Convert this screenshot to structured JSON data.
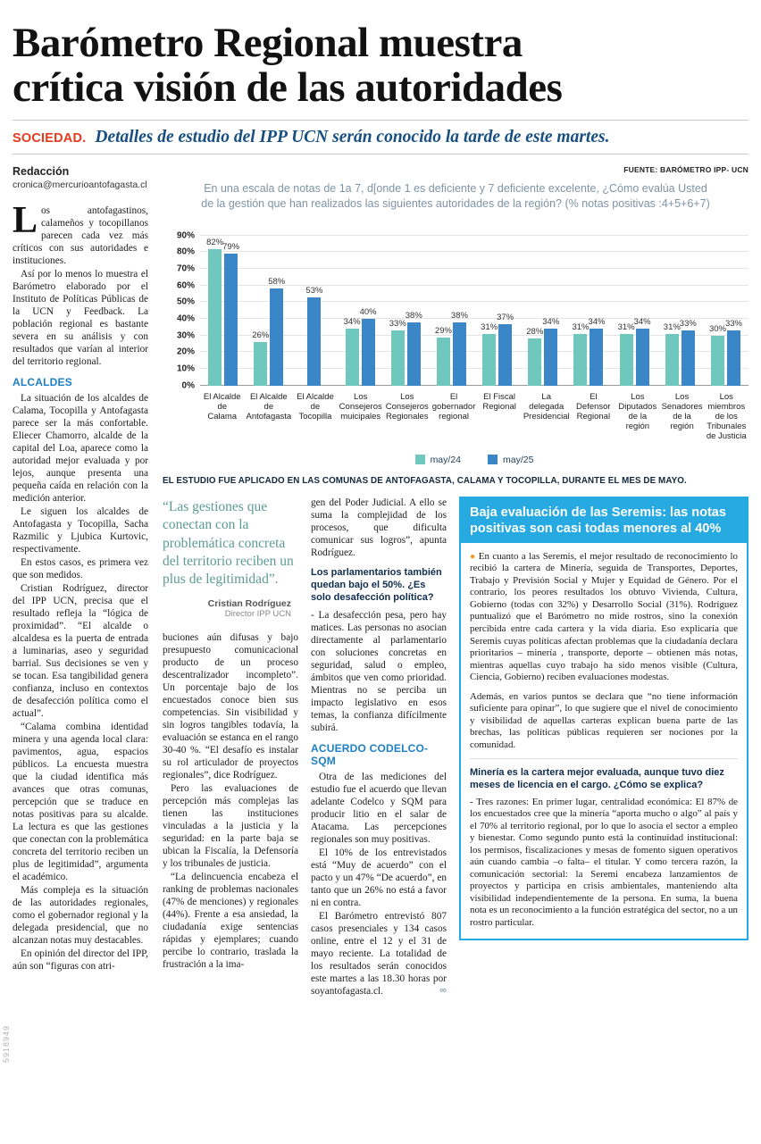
{
  "header": {
    "headline_line1": "Barómetro Regional muestra",
    "headline_line2": "crítica visión de las autoridades",
    "kicker": "SOCIEDAD.",
    "deck": "Detalles de estudio del IPP UCN serán conocido la tarde de este martes.",
    "print_code": "5918949"
  },
  "byline": {
    "name": "Redacción",
    "email": "cronica@mercurioantofagasta.cl"
  },
  "chart": {
    "source": "FUENTE: BARÓMETRO IPP- UCN",
    "caption": "EL ESTUDIO FUE APLICADO EN LAS COMUNAS DE ANTOFAGASTA, CALAMA Y TOCOPILLA, DURANTE EL MES DE MAYO."
  },
  "chart_data": {
    "type": "bar",
    "title": "En una escala de notas de 1a 7, d[onde 1 es deficiente y 7 deficiente excelente, ¿Cómo evalúa Usted de la gestión que han realizados las siguientes autoridades de la región? (% notas positivas :4+5+6+7)",
    "categories": [
      "El Alcalde de Calama",
      "El Alcalde de Antofagasta",
      "El Alcalde de Tocopilla",
      "Los Consejeros muicipales",
      "Los Consejeros Regionales",
      "El gobernador regional",
      "El Fiscal Regional",
      "La delegada Presidencial",
      "El Defensor Regional",
      "Los Diputados de la región",
      "Los Senadores de la región",
      "Los miembros de los Tribunales de Justicia"
    ],
    "series": [
      {
        "name": "may/24",
        "color": "#6fc7bd",
        "values": [
          82,
          26,
          null,
          34,
          33,
          29,
          31,
          28,
          31,
          31,
          31,
          30
        ]
      },
      {
        "name": "may/25",
        "color": "#3b86c6",
        "values": [
          79,
          58,
          53,
          40,
          38,
          38,
          37,
          34,
          34,
          34,
          33,
          33
        ]
      }
    ],
    "ylabel": "",
    "xlabel": "",
    "ylim": [
      0,
      90
    ],
    "ytick_step": 10,
    "grid": true,
    "legend_position": "bottom"
  },
  "article": {
    "col1": {
      "dropcap": "L",
      "p1": "os antofagastinos, calameños y tocopillanos parecen cada vez más críticos con sus autoridades e instituciones.",
      "p2": "Así por lo menos lo muestra el Barómetro elaborado por el Instituto de Políticas Públicas de la UCN y Feedback. La población regional es bastante severa en su análisis y con resultados que varían al interior del territorio regional.",
      "subhead": "ALCALDES",
      "p3": "La situación de los alcaldes de Calama, Tocopilla y Antofagasta parece ser la más confortable. Eliecer Chamorro, alcalde de la capital del Loa, aparece como la autoridad mejor evaluada y por lejos, aunque presenta una pequeña caída en relación con la medición anterior.",
      "p4": "Le siguen los alcaldes de Antofagasta y Tocopilla, Sacha Razmilic y Ljubica Kurtovic, respectivamente.",
      "p5": "En estos casos, es primera vez que son medidos.",
      "p6": "Cristian Rodríguez, director del IPP UCN, precisa que el resultado refleja la “lógica de proximidad”. “El alcalde o alcaldesa es la puerta de entrada a luminarias, aseo y seguridad barrial. Sus decisiones se ven y se tocan. Esa tangibilidad genera confianza, incluso en contextos de desafección política como el actual”.",
      "p7": "“Calama combina identidad minera y una agenda local clara: pavimentos, agua, espacios públicos. La encuesta muestra que la ciudad identifica más avances que otras comunas, percepción que se traduce en notas positivas para su alcalde. La lectura es que las gestiones que conectan con la problemática concreta del territorio reciben un plus de legitimidad”, argumenta el académico.",
      "p8": "Más compleja es la situación de las autoridades regionales, como el gobernador regional y la delegada presidencial, que no alcanzan notas muy destacables.",
      "p9": "En opinión del director del IPP, aún son “figuras con atri-"
    },
    "col2": {
      "quote": "“Las gestiones que conectan con la problemática concreta del territorio reciben un plus de legitimidad”.",
      "quote_author": "Cristian Rodríguez",
      "quote_role": "Director IPP UCN",
      "p1": "buciones aún difusas y bajo presupuesto comunicacional producto de un proceso descentralizador incompleto”. Un porcentaje bajo de los encuestados conoce bien sus competencias. Sin visibilidad y sin logros tangibles todavía, la evaluación se estanca en el rango 30-40 %. “El desafío es instalar su rol articulador de proyectos regionales”, dice Rodríguez.",
      "p2": "Pero las evaluaciones de percepción más complejas las tienen las instituciones vinculadas a la justicia y la seguridad: en la parte baja se ubican la Fiscalía, la Defensoría y los tribunales de justicia.",
      "p3": "“La delincuencia encabeza el ranking de problemas nacionales (47% de menciones) y regionales (44%). Frente a esa ansiedad, la ciudadanía exige sentencias rápidas y ejemplares; cuando percibe lo contrario, traslada la frustración a la ima-"
    },
    "col3": {
      "p1": "gen del Poder Judicial. A ello se suma la complejidad de los procesos, que dificulta comunicar sus logros”, apunta Rodríguez.",
      "q1": "Los parlamentarios también quedan bajo el 50%. ¿Es solo desafección política?",
      "p2": "- La desafección pesa, pero hay matices. Las personas no asocian directamente al parlamentario con soluciones concretas en seguridad, salud o empleo, ámbitos que ven como prioridad. Mientras no se perciba un impacto legislativo en esos temas, la confianza difícilmente subirá.",
      "subhead": "ACUERDO CODELCO- SQM",
      "p3": "Otra de las mediciones del estudio fue el acuerdo que llevan adelante Codelco y SQM para producir litio en el salar de Atacama. Las percepciones regionales son muy positivas.",
      "p4": "El 10% de los entrevistados está “Muy de acuerdo” con el pacto y un 47% “De acuerdo”, en tanto que un 26% no está a favor ni en contra.",
      "p5": "El Barómetro entrevistó 807 casos presenciales y 134 casos online, entre el 12 y el 31 de mayo reciente. La totalidad de los resultados serán conocidos este martes a las 18.30 horas por soyantofagasta.cl.",
      "endmark": "∞"
    },
    "box": {
      "title": "Baja evaluación de las Seremis: las notas positivas son casi todas menores al 40%",
      "bullet": "●",
      "p1": "En cuanto a las Seremis, el mejor resultado de reconocimiento lo recibió la cartera de Minería, seguida de Transportes, Deportes, Trabajo y Previsión Social y Mujer y Equidad de Género. Por el contrario, los peores resultados los obtuvo Vivienda, Cultura, Gobierno (todas con 32%) y Desarrollo Social (31%). Rodríguez puntualizó que el Barómetro no mide rostros, sino la conexión percibida entre cada cartera y la vida diaria. Eso explicaría que Seremis cuyas políticas afectan problemas que la ciudadanía declara prioritarios – minería , transporte, deporte – obtienen más notas, mientras aquellas cuyo trabajo ha sido menos visible (Cultura, Ciencia, Gobierno) reciben evaluaciones modestas.",
      "p2": "Además, en varios puntos se declara que “no tiene información suficiente para opinar”, lo que sugiere que el nivel de conocimiento y visibilidad de aquellas carteras explican buena parte de las brechas, las políticas públicas requieren ser nociones por la comunidad.",
      "q": "Minería es la cartera mejor evaluada, aunque tuvo diez meses de licencia en el cargo. ¿Cómo se explica?",
      "a": "- Tres razones: En primer lugar, centralidad económica: El 87% de los encuestados cree que la minería “aporta mucho o algo” al país y el 70% al territorio regional, por lo que lo asocia el sector a empleo y bienestar. Como segundo punto está la continuidad institucional: los permisos, fiscalizaciones y mesas de fomento siguen operativos aún cuando cambia –o falta– el titular. Y como tercera razón, la comunicación sectorial: la Seremi encabeza lanzamientos de proyectos y participa en crisis ambientales, manteniendo alta visibilidad independientemente de la persona. En suma, la buena nota es un reconocimiento a la función estratégica del sector, no a un rostro particular."
    }
  }
}
